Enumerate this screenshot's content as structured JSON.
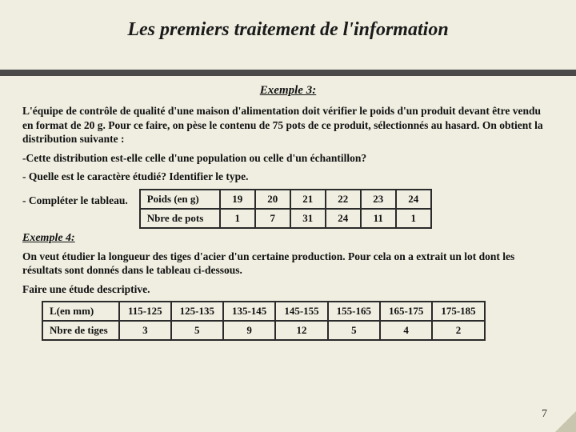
{
  "title": "Les premiers traitement de l'information",
  "rule_color": "#4a4a4a",
  "background_color": "#f0eee1",
  "page_number": "7",
  "example3": {
    "heading": "Exemple 3:",
    "intro": "L'équipe de contrôle de qualité d'une maison d'alimentation doit vérifier le poids d'un produit devant être vendu en format de 20 g. Pour ce faire, on pèse le contenu de 75 pots de ce produit, sélectionnés au hasard. On obtient la distribution suivante :",
    "q1": "-Cette distribution est-elle celle d'une population ou celle d'un échantillon?",
    "q2": "- Quelle est le caractère étudié? Identifier le type.",
    "q3": "- Compléter le tableau.",
    "table": {
      "type": "table",
      "border_color": "#2b2b2b",
      "row_labels": [
        "Poids (en g)",
        "Nbre de pots"
      ],
      "columns": [
        "19",
        "20",
        "21",
        "22",
        "23",
        "24"
      ],
      "values": [
        "1",
        "7",
        "31",
        "24",
        "11",
        "1"
      ]
    }
  },
  "example4": {
    "heading": "Exemple 4:",
    "intro": "On veut étudier la longueur des tiges d'acier d'un certaine production. Pour cela on a extrait un lot dont les résultats sont donnés dans le tableau ci-dessous.",
    "task": "Faire une étude descriptive.",
    "table": {
      "type": "table",
      "border_color": "#2b2b2b",
      "row_labels": [
        "L(en mm)",
        "Nbre de tiges"
      ],
      "columns": [
        "115-125",
        "125-135",
        "135-145",
        "145-155",
        "155-165",
        "165-175",
        "175-185"
      ],
      "values": [
        "3",
        "5",
        "9",
        "12",
        "5",
        "4",
        "2"
      ]
    }
  }
}
